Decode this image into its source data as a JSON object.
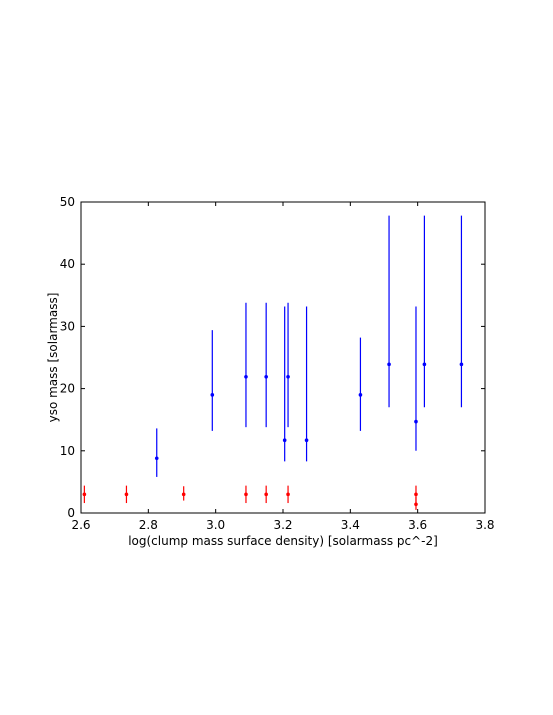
{
  "chart_data": {
    "type": "scatter",
    "title": "",
    "xlabel": "log(clump mass surface density) [solarmass pc^-2]",
    "ylabel": "yso mass [solarmass]",
    "xlim": [
      2.6,
      3.8
    ],
    "ylim": [
      0,
      50
    ],
    "xticks": [
      2.6,
      2.8,
      3.0,
      3.2,
      3.4,
      3.6,
      3.8
    ],
    "yticks": [
      0,
      10,
      20,
      30,
      40,
      50
    ],
    "x_tick_labels": [
      "2.6",
      "2.8",
      "3.0",
      "3.2",
      "3.4",
      "3.6",
      "3.8"
    ],
    "y_tick_labels": [
      "0",
      "10",
      "20",
      "30",
      "40",
      "50"
    ],
    "grid": false,
    "legend": "none",
    "series": [
      {
        "color": "#0000ff",
        "points": [
          {
            "x": 2.825,
            "y": 8.8,
            "ylow": 5.8,
            "yhigh": 13.6
          },
          {
            "x": 2.99,
            "y": 19.0,
            "ylow": 13.2,
            "yhigh": 29.4
          },
          {
            "x": 3.09,
            "y": 21.9,
            "ylow": 13.8,
            "yhigh": 33.8
          },
          {
            "x": 3.15,
            "y": 21.9,
            "ylow": 13.8,
            "yhigh": 33.8
          },
          {
            "x": 3.205,
            "y": 11.7,
            "ylow": 8.3,
            "yhigh": 33.2
          },
          {
            "x": 3.215,
            "y": 21.9,
            "ylow": 13.8,
            "yhigh": 33.8
          },
          {
            "x": 3.27,
            "y": 11.7,
            "ylow": 8.3,
            "yhigh": 33.2
          },
          {
            "x": 3.43,
            "y": 19.0,
            "ylow": 13.2,
            "yhigh": 28.2
          },
          {
            "x": 3.515,
            "y": 23.9,
            "ylow": 17.0,
            "yhigh": 47.8
          },
          {
            "x": 3.595,
            "y": 14.7,
            "ylow": 10.0,
            "yhigh": 33.2
          },
          {
            "x": 3.62,
            "y": 23.9,
            "ylow": 17.0,
            "yhigh": 47.8
          },
          {
            "x": 3.73,
            "y": 23.9,
            "ylow": 17.0,
            "yhigh": 47.8
          }
        ]
      },
      {
        "color": "#ff0000",
        "points": [
          {
            "x": 2.61,
            "y": 3.0,
            "ylow": 1.6,
            "yhigh": 4.4
          },
          {
            "x": 2.735,
            "y": 3.0,
            "ylow": 1.6,
            "yhigh": 4.4
          },
          {
            "x": 2.905,
            "y": 3.0,
            "ylow": 2.0,
            "yhigh": 4.3
          },
          {
            "x": 3.09,
            "y": 3.0,
            "ylow": 1.6,
            "yhigh": 4.4
          },
          {
            "x": 3.15,
            "y": 3.0,
            "ylow": 1.6,
            "yhigh": 4.4
          },
          {
            "x": 3.215,
            "y": 3.0,
            "ylow": 1.6,
            "yhigh": 4.4
          },
          {
            "x": 3.595,
            "y": 3.0,
            "ylow": 1.6,
            "yhigh": 4.4
          },
          {
            "x": 3.595,
            "y": 1.4,
            "ylow": 0.5,
            "yhigh": 2.6
          }
        ]
      }
    ]
  }
}
